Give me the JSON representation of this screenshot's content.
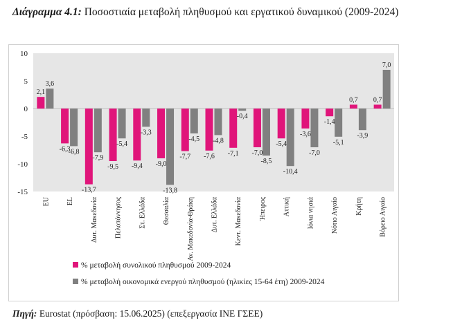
{
  "caption": {
    "label": "Διάγραμμα 4.1:",
    "text": "Ποσοστιαία μεταβολή πληθυσμού και εργατικού δυναμικού (2009-2024)"
  },
  "source": {
    "label": "Πηγή:",
    "text": "Eurostat (πρόσβαση: 15.06.2025) (επεξεργασία ΙΝΕ ΓΣΕΕ)"
  },
  "colors": {
    "series1": "#e0157a",
    "series2": "#808080",
    "plot_bg": "#e6e6e6",
    "axis_text": "#222222"
  },
  "chart_data": {
    "type": "bar",
    "categories": [
      "EU",
      "EL",
      "Δυτ. Μακεδονία",
      "Πελοπόννησος",
      "Στ. Ελλάδα",
      "Θεσσαλία",
      "Αν. Μακεδονία-Θράκη",
      "Δυτ. Ελλάδα",
      "Κεντ. Μακεδονία",
      "Ήπειρος",
      "Αττική",
      "Ιόνια νησιά",
      "Νότιο Αιγαίο",
      "Κρήτη",
      "Βόρειο Αιγαίο"
    ],
    "series": [
      {
        "name": "% μεταβολή συνολικού πληθυσμού 2009-2024",
        "values": [
          2.1,
          -6.3,
          -13.7,
          -9.5,
          -9.4,
          -9.0,
          -7.7,
          -7.6,
          -7.1,
          -7.0,
          -5.4,
          -3.6,
          -1.4,
          0.7,
          0.7
        ],
        "labels": [
          "2,1",
          "-6,3",
          "-13,7",
          "-9,5",
          "-9,4",
          "-9,0",
          "-7,7",
          "-7,6",
          "-7,1",
          "-7,0",
          "-5,4",
          "-3,6",
          "-1,4",
          "0,7",
          "0,7"
        ]
      },
      {
        "name": "% μεταβολή οικονομικά ενεργού πληθυσμού (ηλικίες 15-64 έτη) 2009-2024",
        "values": [
          3.6,
          -6.8,
          -7.9,
          -5.4,
          -3.3,
          -13.8,
          -4.5,
          -4.8,
          -0.4,
          -8.5,
          -10.4,
          -7.0,
          -5.1,
          -3.9,
          7.0
        ],
        "labels": [
          "3,6",
          "-6,8",
          "-7,9",
          "-5,4",
          "-3,3",
          "-13,8",
          "-4,5",
          "-4,8",
          "-0,4",
          "-8,5",
          "-10,4",
          "-7,0",
          "-5,1",
          "-3,9",
          "7,0"
        ]
      }
    ],
    "ylim": [
      -15,
      10
    ],
    "yticks": [
      10,
      5,
      0,
      -5,
      -10,
      -15
    ],
    "grid": false,
    "legend_position": "bottom-left"
  }
}
